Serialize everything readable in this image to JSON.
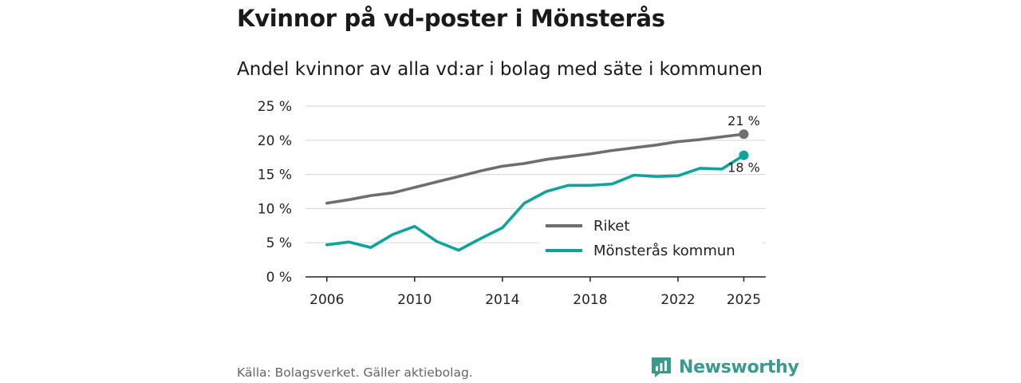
{
  "header": {
    "title": "Kvinnor på vd-poster i Mönsterås",
    "subtitle": "Andel kvinnor av alla vd:ar i bolag med säte i kommunen"
  },
  "footer": {
    "source": "Källa: Bolagsverket. Gäller aktiebolag.",
    "brand": "Newsworthy",
    "brand_icon": "newsworthy-logo-icon"
  },
  "colors": {
    "riket": "#6e6e70",
    "kommun": "#0fa39a",
    "grid": "#dcdcdc",
    "axis": "#222222"
  },
  "chart_data": {
    "type": "line",
    "title": "Kvinnor på vd-poster i Mönsterås",
    "subtitle": "Andel kvinnor av alla vd:ar i bolag med säte i kommunen",
    "xlabel": "",
    "ylabel": "",
    "xlim": [
      2005.1,
      2026.0
    ],
    "ylim": [
      0,
      25
    ],
    "x_ticks": [
      2006,
      2010,
      2014,
      2018,
      2022,
      2025
    ],
    "x_tick_labels": [
      "2006",
      "2010",
      "2014",
      "2018",
      "2022",
      "2025"
    ],
    "y_ticks": [
      0,
      5,
      10,
      15,
      20,
      25
    ],
    "y_tick_labels": [
      "0 %",
      "5 %",
      "10 %",
      "15 %",
      "20 %",
      "25 %"
    ],
    "grid": true,
    "legend_position": "bottom-right",
    "series": [
      {
        "name": "Riket",
        "color_key": "riket",
        "x": [
          2006,
          2007,
          2008,
          2009,
          2010,
          2011,
          2012,
          2013,
          2014,
          2015,
          2016,
          2017,
          2018,
          2019,
          2020,
          2021,
          2022,
          2023,
          2024,
          2025
        ],
        "values": [
          10.8,
          11.3,
          11.9,
          12.3,
          13.1,
          13.9,
          14.7,
          15.5,
          16.2,
          16.6,
          17.2,
          17.6,
          18.0,
          18.5,
          18.9,
          19.3,
          19.8,
          20.1,
          20.5,
          20.9
        ],
        "end_label": "21 %"
      },
      {
        "name": "Mönsterås kommun",
        "color_key": "kommun",
        "x": [
          2006,
          2007,
          2008,
          2009,
          2010,
          2011,
          2012,
          2013,
          2014,
          2015,
          2016,
          2017,
          2018,
          2019,
          2020,
          2021,
          2022,
          2023,
          2024,
          2025
        ],
        "values": [
          4.7,
          5.1,
          4.3,
          6.2,
          7.4,
          5.2,
          3.9,
          5.6,
          7.2,
          10.8,
          12.5,
          13.4,
          13.4,
          13.6,
          14.9,
          14.7,
          14.8,
          15.9,
          15.8,
          17.8
        ],
        "end_label": "18 %"
      }
    ]
  }
}
